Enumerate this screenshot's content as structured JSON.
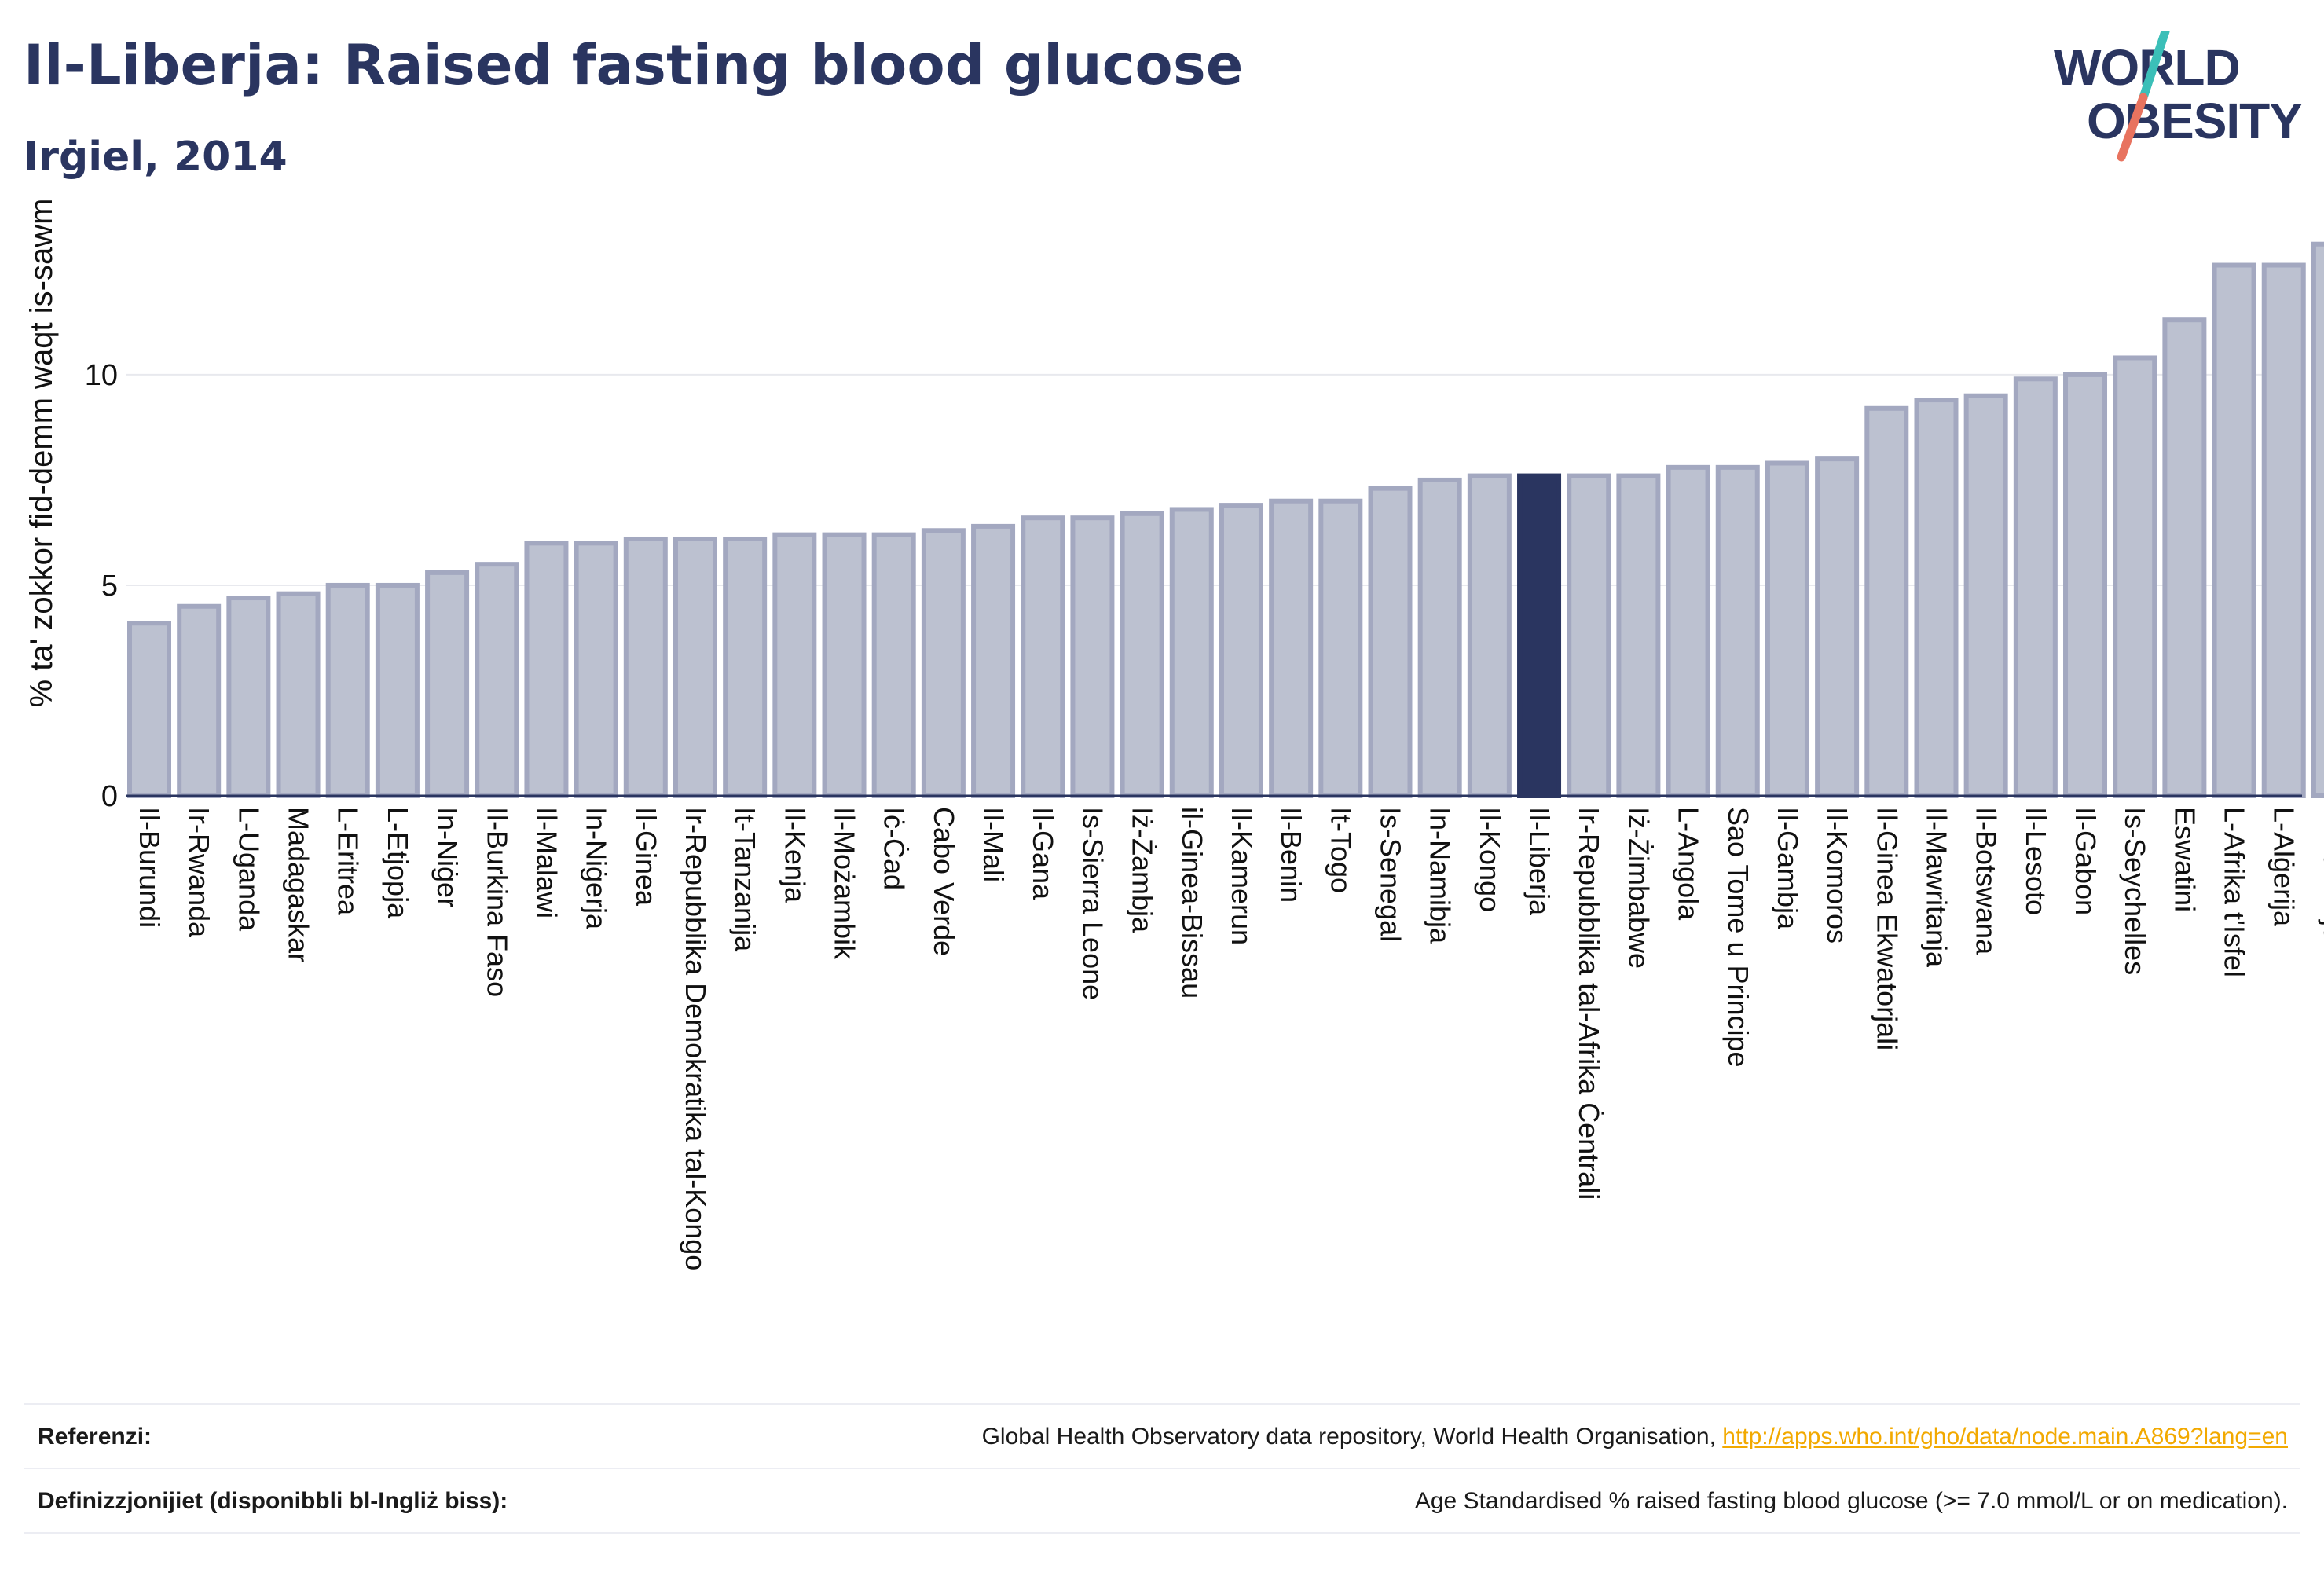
{
  "header": {
    "title": "Il-Liberja: Raised fasting blood glucose",
    "subtitle": "Irġiel, 2014"
  },
  "logo": {
    "line1": "WORLD",
    "line2": "OBESITY",
    "colors": {
      "text": "#2a3560",
      "slash_teal": "#3bbfb8",
      "slash_coral": "#e8735f"
    }
  },
  "chart_data": {
    "type": "bar",
    "title": "Il-Liberja: Raised fasting blood glucose",
    "subtitle": "Irġiel, 2014",
    "xlabel": "",
    "ylabel": "% ta' zokkor fid-demm waqt is-sawm",
    "ylim": [
      0,
      13.3
    ],
    "yticks": [
      0,
      5,
      10
    ],
    "grid": true,
    "highlight_category": "Il-Liberja",
    "colors": {
      "bar": "#bcc1d0",
      "bar_border": "#a3a8c0",
      "highlight": "#2a3560"
    },
    "categories": [
      "Il-Burundi",
      "Ir-Rwanda",
      "L-Uganda",
      "Madagaskar",
      "L-Eritrea",
      "L-Etjopja",
      "In-Niġer",
      "Il-Burkina Faso",
      "Il-Malawi",
      "In-Niġerja",
      "Il-Ginea",
      "Ir-Repubblika Demokratika tal-Kongo",
      "It-Tanzanija",
      "Il-Kenja",
      "Il-Możambik",
      "Iċ-Ċad",
      "Cabo Verde",
      "Il-Mali",
      "Il-Gana",
      "Is-Sierra Leone",
      "Iż-Żambja",
      "il-Ginea-Bissau",
      "Il-Kamerun",
      "Il-Benin",
      "It-Togo",
      "Is-Senegal",
      "In-Namibja",
      "Il-Kongo",
      "Il-Liberja",
      "Ir-Repubblika tal-Afrika Ċentrali",
      "Iż-Żimbabwe",
      "L-Angola",
      "Sao Tome u Principe",
      "Il-Gambja",
      "Il-Komoros",
      "Il-Ginea Ekwatorjali",
      "Il-Mawritanja",
      "Il-Botswana",
      "Il-Lesoto",
      "Il-Gabon",
      "Is-Seychelles",
      "Eswatini",
      "L-Afrika t'Isfel",
      "L-Alġerija",
      "Il-Mawrizju"
    ],
    "values": [
      4.1,
      4.5,
      4.7,
      4.8,
      5.0,
      5.0,
      5.3,
      5.5,
      6.0,
      6.0,
      6.1,
      6.1,
      6.1,
      6.2,
      6.2,
      6.2,
      6.3,
      6.4,
      6.6,
      6.6,
      6.7,
      6.8,
      6.9,
      7.0,
      7.0,
      7.3,
      7.5,
      7.6,
      7.6,
      7.6,
      7.6,
      7.8,
      7.8,
      7.9,
      8.0,
      9.2,
      9.4,
      9.5,
      9.9,
      10.0,
      10.4,
      11.3,
      12.6,
      12.6,
      13.1
    ]
  },
  "footer": {
    "references_label": "Referenzi:",
    "references_text": "Global Health Observatory data repository, World Health Organisation, ",
    "references_link": "http://apps.who.int/gho/data/node.main.A869?lang=en",
    "definitions_label": "Definizzjonijiet (disponibbli bl-Ingliż biss):",
    "definitions_text": "Age Standardised % raised fasting blood glucose (>= 7.0 mmol/L or on medication)."
  }
}
